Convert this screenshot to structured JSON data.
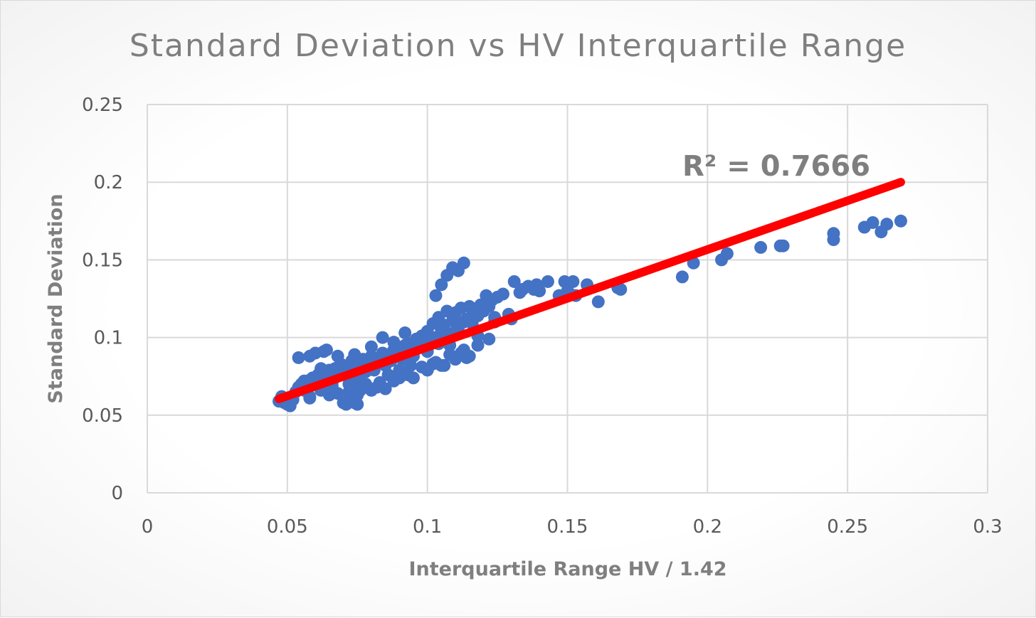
{
  "chart_data": {
    "type": "scatter",
    "title": "Standard Deviation vs HV Interquartile Range",
    "xlabel": "Interquartile Range HV / 1.42",
    "ylabel": "Standard Deviation",
    "xlim": [
      0,
      0.3
    ],
    "ylim": [
      0,
      0.25
    ],
    "x_ticks": [
      "0",
      "0.05",
      "0.1",
      "0.15",
      "0.2",
      "0.25",
      "0.3"
    ],
    "y_ticks": [
      "0",
      "0.05",
      "0.1",
      "0.15",
      "0.2",
      "0.25"
    ],
    "grid": true,
    "point_color": "#4472c4",
    "trendline": {
      "color": "#ff0000",
      "x": [
        0.047,
        0.269
      ],
      "y": [
        0.0605,
        0.2
      ],
      "r2_label": "R² = 0.7666"
    },
    "series": [
      {
        "name": "Standard Deviation",
        "x": [
          0.047,
          0.048,
          0.049,
          0.05,
          0.051,
          0.052,
          0.053,
          0.054,
          0.055,
          0.056,
          0.057,
          0.058,
          0.059,
          0.06,
          0.061,
          0.062,
          0.063,
          0.064,
          0.065,
          0.066,
          0.067,
          0.068,
          0.069,
          0.07,
          0.071,
          0.072,
          0.073,
          0.074,
          0.075,
          0.076,
          0.077,
          0.078,
          0.079,
          0.08,
          0.081,
          0.082,
          0.083,
          0.084,
          0.085,
          0.086,
          0.087,
          0.088,
          0.089,
          0.09,
          0.091,
          0.092,
          0.093,
          0.094,
          0.095,
          0.096,
          0.097,
          0.098,
          0.099,
          0.1,
          0.101,
          0.102,
          0.103,
          0.104,
          0.105,
          0.106,
          0.107,
          0.108,
          0.109,
          0.11,
          0.111,
          0.112,
          0.113,
          0.114,
          0.115,
          0.116,
          0.117,
          0.118,
          0.119,
          0.12,
          0.121,
          0.122,
          0.123,
          0.124,
          0.125,
          0.127,
          0.129,
          0.13,
          0.131,
          0.133,
          0.134,
          0.136,
          0.138,
          0.139,
          0.14,
          0.143,
          0.147,
          0.149,
          0.15,
          0.151,
          0.152,
          0.153,
          0.157,
          0.161,
          0.168,
          0.169,
          0.054,
          0.056,
          0.058,
          0.06,
          0.062,
          0.064,
          0.066,
          0.068,
          0.07,
          0.072,
          0.074,
          0.076,
          0.078,
          0.08,
          0.082,
          0.084,
          0.086,
          0.088,
          0.09,
          0.092,
          0.094,
          0.096,
          0.098,
          0.1,
          0.102,
          0.104,
          0.106,
          0.108,
          0.11,
          0.112,
          0.114,
          0.116,
          0.118,
          0.12,
          0.122,
          0.124,
          0.065,
          0.07,
          0.075,
          0.08,
          0.085,
          0.09,
          0.095,
          0.1,
          0.105,
          0.11,
          0.115,
          0.058,
          0.063,
          0.068,
          0.073,
          0.078,
          0.083,
          0.088,
          0.093,
          0.098,
          0.103,
          0.108,
          0.113,
          0.118,
          0.071,
          0.072,
          0.073,
          0.074,
          0.075,
          0.076,
          0.103,
          0.105,
          0.107,
          0.109,
          0.111,
          0.113,
          0.191,
          0.195,
          0.205,
          0.207,
          0.219,
          0.226,
          0.227,
          0.245,
          0.245,
          0.256,
          0.259,
          0.262,
          0.264,
          0.269
        ],
        "y": [
          0.059,
          0.062,
          0.058,
          0.057,
          0.056,
          0.06,
          0.065,
          0.068,
          0.07,
          0.066,
          0.072,
          0.062,
          0.074,
          0.073,
          0.076,
          0.08,
          0.078,
          0.074,
          0.079,
          0.071,
          0.08,
          0.076,
          0.083,
          0.077,
          0.081,
          0.07,
          0.085,
          0.074,
          0.079,
          0.082,
          0.086,
          0.078,
          0.084,
          0.088,
          0.079,
          0.083,
          0.087,
          0.09,
          0.082,
          0.089,
          0.085,
          0.092,
          0.088,
          0.093,
          0.086,
          0.095,
          0.09,
          0.096,
          0.088,
          0.099,
          0.094,
          0.101,
          0.097,
          0.104,
          0.097,
          0.109,
          0.1,
          0.113,
          0.104,
          0.108,
          0.117,
          0.102,
          0.111,
          0.116,
          0.106,
          0.119,
          0.11,
          0.112,
          0.12,
          0.109,
          0.118,
          0.114,
          0.121,
          0.117,
          0.127,
          0.12,
          0.124,
          0.113,
          0.126,
          0.128,
          0.115,
          0.112,
          0.136,
          0.129,
          0.131,
          0.133,
          0.131,
          0.134,
          0.13,
          0.136,
          0.127,
          0.136,
          0.13,
          0.128,
          0.136,
          0.127,
          0.134,
          0.123,
          0.132,
          0.131,
          0.087,
          0.072,
          0.088,
          0.09,
          0.066,
          0.092,
          0.069,
          0.088,
          0.082,
          0.065,
          0.089,
          0.073,
          0.083,
          0.094,
          0.068,
          0.1,
          0.076,
          0.097,
          0.079,
          0.103,
          0.082,
          0.093,
          0.1,
          0.091,
          0.083,
          0.096,
          0.082,
          0.095,
          0.104,
          0.09,
          0.087,
          0.114,
          0.095,
          0.119,
          0.099,
          0.11,
          0.063,
          0.058,
          0.057,
          0.066,
          0.067,
          0.074,
          0.074,
          0.079,
          0.082,
          0.086,
          0.088,
          0.061,
          0.091,
          0.064,
          0.068,
          0.07,
          0.071,
          0.072,
          0.076,
          0.081,
          0.084,
          0.089,
          0.092,
          0.101,
          0.057,
          0.06,
          0.064,
          0.058,
          0.063,
          0.066,
          0.127,
          0.134,
          0.14,
          0.145,
          0.143,
          0.148,
          0.139,
          0.148,
          0.15,
          0.154,
          0.158,
          0.159,
          0.159,
          0.167,
          0.163,
          0.171,
          0.174,
          0.168,
          0.173,
          0.175
        ]
      }
    ]
  }
}
